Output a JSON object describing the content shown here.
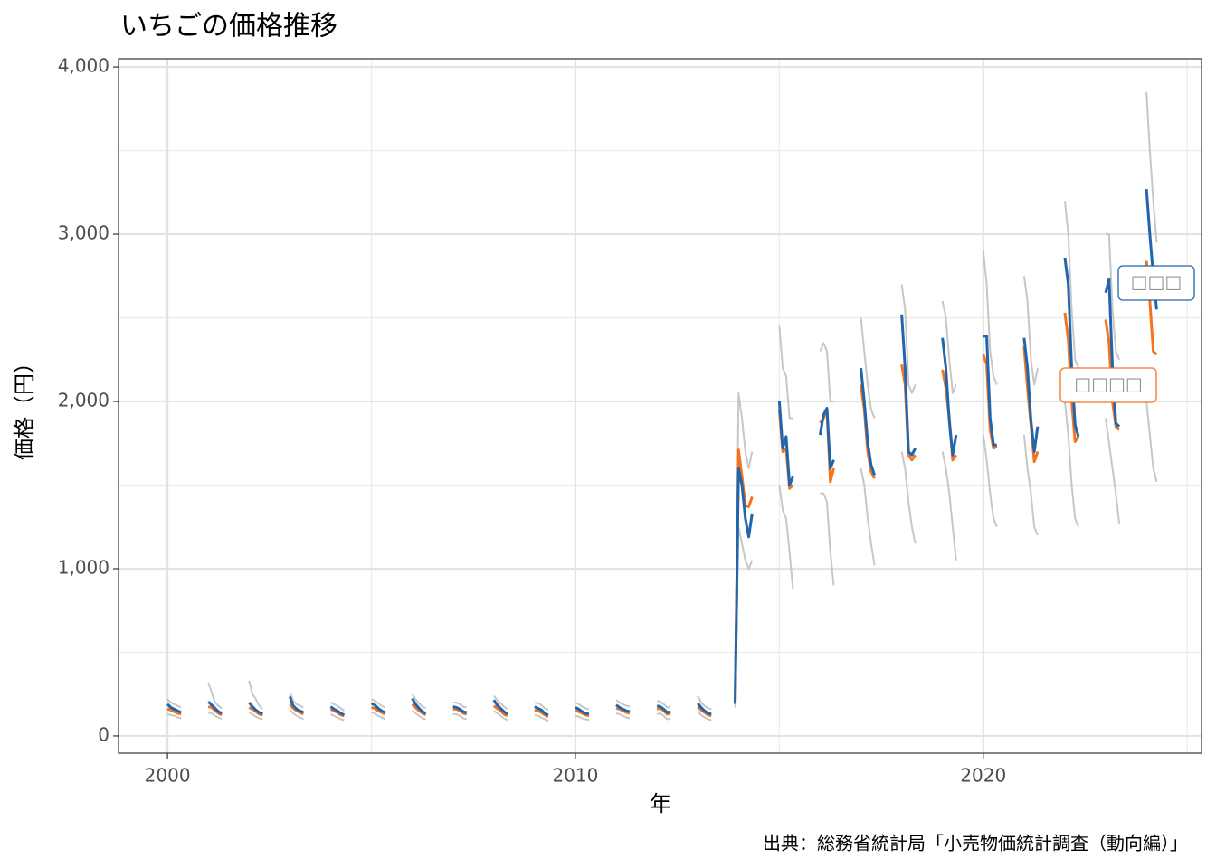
{
  "chart_data": {
    "type": "line",
    "title": "いちごの価格推移",
    "x_label": "年",
    "y_label": "価格（円）",
    "caption": "出典：総務省統計局「小売物価統計調査（動向編）」",
    "xlim": [
      1998.8,
      2025.35
    ],
    "xticks": [
      2000,
      2010,
      2020
    ],
    "x_minor_ticks": [
      2005,
      2015,
      2025
    ],
    "ylim": [
      -103,
      4049
    ],
    "yticks": [
      0,
      {
        "value": 1000,
        "label": "1,000"
      },
      {
        "value": 2000,
        "label": "2,000"
      },
      {
        "value": 3000,
        "label": "3,000"
      },
      {
        "value": 4000,
        "label": "4,000"
      }
    ],
    "y_minor_ticks": [
      500,
      1500,
      2500,
      3500
    ],
    "grid": true,
    "x": [
      2000,
      2000.083,
      2000.167,
      2000.25,
      2000.333,
      null,
      2001,
      2001.083,
      2001.167,
      2001.25,
      2001.333,
      null,
      2002,
      2002.083,
      2002.167,
      2002.25,
      2002.333,
      null,
      2003,
      2003.083,
      2003.167,
      2003.25,
      2003.333,
      null,
      2004,
      2004.083,
      2004.167,
      2004.25,
      2004.333,
      null,
      2005,
      2005.083,
      2005.167,
      2005.25,
      2005.333,
      null,
      2006,
      2006.083,
      2006.167,
      2006.25,
      2006.333,
      null,
      2007,
      2007.083,
      2007.167,
      2007.25,
      2007.333,
      null,
      2008,
      2008.083,
      2008.167,
      2008.25,
      2008.333,
      null,
      2009,
      2009.083,
      2009.167,
      2009.25,
      2009.333,
      null,
      2010,
      2010.083,
      2010.167,
      2010.25,
      2010.333,
      null,
      2011,
      2011.083,
      2011.167,
      2011.25,
      2011.333,
      null,
      2012,
      2012.083,
      2012.167,
      2012.25,
      2012.333,
      null,
      2013,
      2013.083,
      2013.167,
      2013.25,
      2013.333,
      null,
      2013.917,
      2014,
      2014.083,
      2014.167,
      2014.25,
      2014.333,
      null,
      2015,
      2015.083,
      2015.167,
      2015.25,
      2015.333,
      null,
      2016,
      2016.083,
      2016.167,
      2016.25,
      2016.333,
      null,
      2017,
      2017.083,
      2017.167,
      2017.25,
      2017.333,
      null,
      2018,
      2018.083,
      2018.167,
      2018.25,
      2018.333,
      null,
      2019,
      2019.083,
      2019.167,
      2019.25,
      2019.333,
      null,
      2020,
      2020.083,
      2020.167,
      2020.25,
      2020.333,
      null,
      2021,
      2021.083,
      2021.167,
      2021.25,
      2021.333,
      null,
      2022,
      2022.083,
      2022.167,
      2022.25,
      2022.333,
      null,
      2023,
      2023.083,
      2023.167,
      2023.25,
      2023.333,
      null,
      2024,
      2024.083,
      2024.167,
      2024.25
    ],
    "series": [
      {
        "name": "□□□",
        "color": "#2166ac",
        "values": [
          190,
          170,
          160,
          150,
          140,
          null,
          205,
          185,
          165,
          145,
          135,
          null,
          200,
          175,
          155,
          140,
          130,
          null,
          235,
          180,
          160,
          150,
          140,
          null,
          175,
          160,
          150,
          135,
          125,
          null,
          195,
          185,
          165,
          150,
          140,
          null,
          225,
          190,
          165,
          145,
          135,
          null,
          175,
          170,
          160,
          145,
          140,
          null,
          215,
          185,
          165,
          145,
          130,
          null,
          175,
          165,
          155,
          135,
          125,
          null,
          170,
          160,
          145,
          135,
          130,
          null,
          185,
          170,
          160,
          150,
          145,
          null,
          180,
          175,
          160,
          140,
          145,
          null,
          195,
          170,
          150,
          135,
          130,
          null,
          200,
          1600,
          1500,
          1300,
          1190,
          1330,
          null,
          2000,
          1720,
          1790,
          1500,
          1550,
          null,
          1800,
          1920,
          1960,
          1600,
          1650,
          null,
          2200,
          2000,
          1750,
          1620,
          1560,
          null,
          2520,
          2200,
          1700,
          1680,
          1720,
          null,
          2380,
          2200,
          1880,
          1680,
          1800,
          null,
          2390,
          2390,
          1900,
          1740,
          1740,
          null,
          2380,
          2200,
          1890,
          1700,
          1850,
          null,
          2860,
          2700,
          2200,
          1860,
          1790,
          null,
          2650,
          2730,
          2200,
          1870,
          1850,
          null,
          3270,
          3000,
          2750,
          2550
        ]
      },
      {
        "name": "□□□□",
        "color": "#f4731e",
        "values": [
          160,
          155,
          145,
          135,
          130,
          null,
          175,
          170,
          150,
          135,
          125,
          null,
          170,
          160,
          145,
          130,
          125,
          null,
          190,
          165,
          150,
          140,
          130,
          null,
          160,
          150,
          140,
          125,
          120,
          null,
          170,
          165,
          150,
          140,
          130,
          null,
          190,
          170,
          150,
          135,
          125,
          null,
          160,
          160,
          150,
          135,
          130,
          null,
          180,
          165,
          150,
          130,
          120,
          null,
          155,
          150,
          140,
          125,
          115,
          null,
          150,
          145,
          135,
          125,
          120,
          null,
          165,
          160,
          150,
          140,
          135,
          null,
          160,
          165,
          150,
          130,
          135,
          null,
          175,
          155,
          140,
          125,
          120,
          null,
          190,
          1710,
          1550,
          1380,
          1370,
          1430,
          null,
          1950,
          1700,
          1720,
          1480,
          1500,
          null,
          1870,
          1900,
          1950,
          1520,
          1600,
          null,
          2100,
          1950,
          1700,
          1580,
          1540,
          null,
          2220,
          2100,
          1680,
          1650,
          1680,
          null,
          2190,
          2080,
          1900,
          1650,
          1680,
          null,
          2280,
          2220,
          1830,
          1720,
          1730,
          null,
          2330,
          2080,
          1860,
          1640,
          1700,
          null,
          2530,
          2370,
          2000,
          1760,
          1790,
          null,
          2490,
          2350,
          2000,
          1850,
          1830,
          null,
          2840,
          2600,
          2300,
          2280
        ]
      },
      {
        "color": "#bdbdbd",
        "values": [
          220,
          200,
          190,
          180,
          170,
          null,
          320,
          260,
          200,
          180,
          165,
          null,
          330,
          250,
          220,
          180,
          160,
          null,
          260,
          210,
          190,
          180,
          170,
          null,
          200,
          190,
          180,
          165,
          150,
          null,
          220,
          210,
          195,
          180,
          170,
          null,
          250,
          220,
          195,
          175,
          165,
          null,
          200,
          200,
          190,
          175,
          170,
          null,
          240,
          215,
          195,
          175,
          160,
          null,
          200,
          195,
          185,
          165,
          155,
          null,
          200,
          190,
          175,
          165,
          160,
          null,
          215,
          200,
          190,
          180,
          175,
          null,
          210,
          205,
          190,
          170,
          175,
          null,
          240,
          200,
          180,
          165,
          160,
          null,
          220,
          2050,
          1900,
          1700,
          1600,
          1700,
          null,
          2450,
          2200,
          2150,
          1900,
          1900,
          null,
          2300,
          2350,
          2300,
          2000,
          2000,
          null,
          2500,
          2300,
          2100,
          1950,
          1900,
          null,
          2700,
          2550,
          2100,
          2050,
          2100,
          null,
          2600,
          2500,
          2250,
          2050,
          2100,
          null,
          2900,
          2700,
          2300,
          2150,
          2100,
          null,
          2750,
          2600,
          2250,
          2100,
          2200,
          null,
          3200,
          3000,
          2550,
          2250,
          2200,
          null,
          3000,
          3000,
          2550,
          2300,
          2250,
          null,
          3850,
          3500,
          3200,
          2950
        ]
      },
      {
        "color": "#bdbdbd",
        "values": [
          130,
          125,
          120,
          110,
          105,
          null,
          140,
          135,
          120,
          110,
          100,
          null,
          140,
          130,
          115,
          105,
          100,
          null,
          155,
          135,
          120,
          110,
          100,
          null,
          130,
          120,
          110,
          100,
          95,
          null,
          140,
          135,
          120,
          110,
          100,
          null,
          155,
          135,
          120,
          105,
          100,
          null,
          130,
          130,
          120,
          105,
          100,
          null,
          150,
          135,
          120,
          105,
          95,
          null,
          125,
          120,
          110,
          100,
          90,
          null,
          120,
          115,
          105,
          100,
          95,
          null,
          135,
          130,
          120,
          110,
          105,
          null,
          130,
          135,
          120,
          100,
          105,
          null,
          145,
          125,
          110,
          100,
          95,
          null,
          170,
          1250,
          1150,
          1050,
          1000,
          1050,
          null,
          1500,
          1350,
          1300,
          1100,
          880,
          null,
          1450,
          1450,
          1400,
          1100,
          900,
          null,
          1600,
          1500,
          1300,
          1150,
          1020,
          null,
          1700,
          1600,
          1400,
          1250,
          1150,
          null,
          1700,
          1600,
          1450,
          1250,
          1050,
          null,
          1800,
          1650,
          1450,
          1300,
          1250,
          null,
          1800,
          1600,
          1450,
          1250,
          1200,
          null,
          2000,
          1800,
          1500,
          1300,
          1250,
          null,
          1900,
          1750,
          1600,
          1450,
          1270,
          null,
          2000,
          1800,
          1600,
          1520
        ]
      }
    ]
  }
}
